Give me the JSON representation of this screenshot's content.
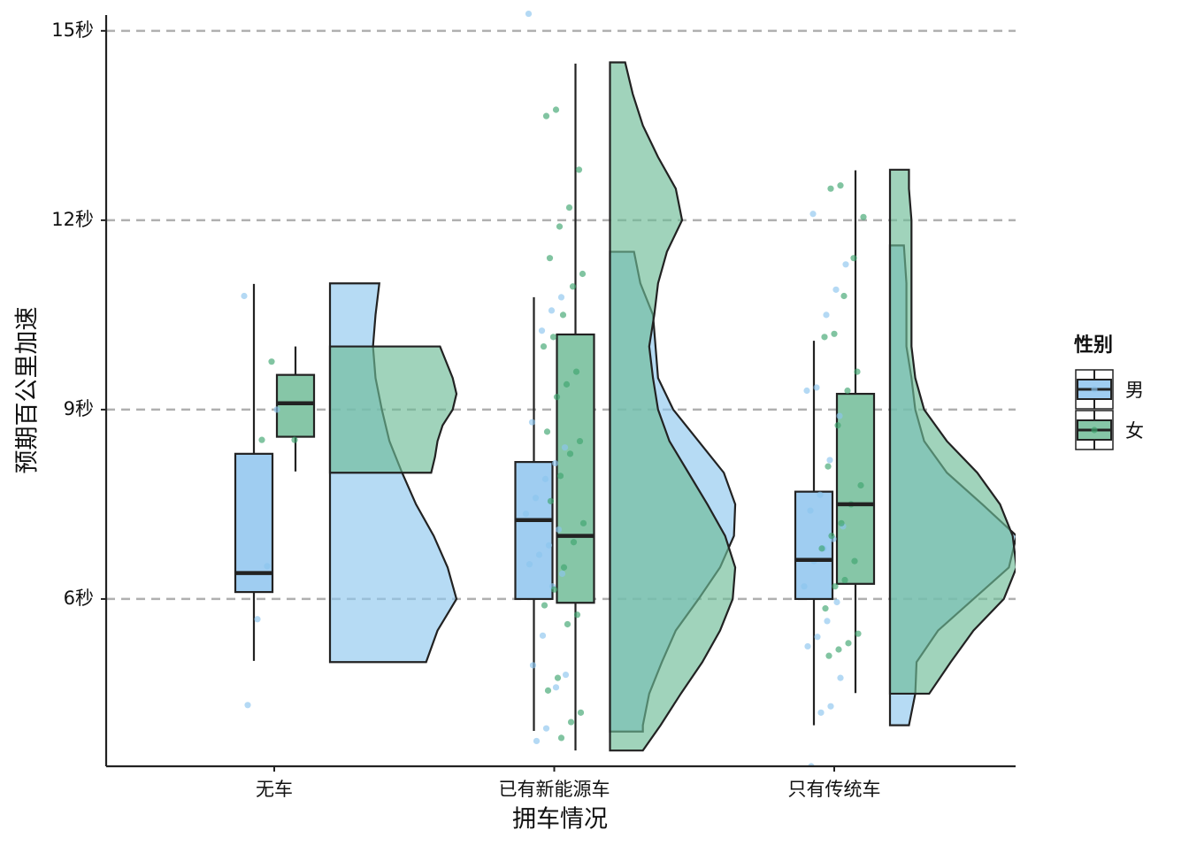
{
  "chart_data": {
    "type": "raincloud",
    "x_label": "拥车情况",
    "y_label": "预期百公里加速",
    "categories": [
      "无车",
      "已有新能源车",
      "只有传统车"
    ],
    "ylim": [
      3.35,
      15.25
    ],
    "yticks": [
      {
        "value": 6,
        "label": "6秒"
      },
      {
        "value": 9,
        "label": "9秒"
      },
      {
        "value": 12,
        "label": "12秒"
      },
      {
        "value": 15,
        "label": "15秒"
      }
    ],
    "grid": true,
    "legend_title": "性别",
    "legend_position": "right",
    "series": [
      {
        "name": "男",
        "color": "#9fcdf1",
        "violin_color": "#8fc7ee",
        "point_color": "#8cc4ee",
        "whisker_low": [
          5.02,
          3.91,
          4.0
        ],
        "q1": [
          6.11,
          6.0,
          6.0
        ],
        "median": [
          6.41,
          7.25,
          6.62
        ],
        "q3": [
          8.3,
          8.17,
          7.7
        ],
        "whisker_high": [
          10.99,
          10.78,
          10.09
        ],
        "points": [
          [
            10.8,
            9.0,
            6.52,
            5.68,
            4.32
          ],
          [
            15.27,
            10.78,
            10.57,
            10.25,
            8.8,
            8.4,
            8.15,
            7.9,
            7.6,
            7.35,
            7.1,
            6.85,
            6.7,
            6.55,
            6.4,
            6.2,
            5.42,
            4.95,
            4.8,
            4.6,
            3.95,
            3.75
          ],
          [
            12.1,
            11.3,
            10.9,
            10.5,
            9.35,
            9.3,
            8.9,
            8.2,
            7.65,
            7.4,
            7.15,
            6.95,
            6.8,
            6.6,
            6.2,
            5.95,
            5.65,
            5.4,
            5.25,
            4.75,
            4.3,
            4.2,
            3.35
          ]
        ],
        "violin": [
          {
            "y": [
              5.0,
              5.5,
              6.0,
              6.5,
              7.0,
              7.5,
              8.0,
              8.5,
              9.0,
              9.5,
              10.0,
              10.5,
              11.0
            ],
            "density": [
              0.76,
              0.85,
              1.0,
              0.93,
              0.82,
              0.68,
              0.57,
              0.47,
              0.41,
              0.36,
              0.34,
              0.36,
              0.39
            ]
          },
          {
            "y": [
              3.9,
              4.0,
              4.5,
              5.0,
              5.5,
              6.0,
              6.5,
              7.0,
              7.5,
              8.0,
              8.5,
              9.0,
              9.5,
              10.0,
              10.5,
              11.0,
              11.5
            ],
            "density": [
              0.26,
              0.26,
              0.31,
              0.41,
              0.52,
              0.7,
              0.87,
              0.98,
              0.99,
              0.9,
              0.7,
              0.5,
              0.38,
              0.36,
              0.34,
              0.24,
              0.19
            ]
          },
          {
            "y": [
              4.0,
              4.5,
              5.0,
              5.5,
              6.0,
              6.5,
              7.0,
              7.5,
              8.0,
              8.5,
              9.0,
              9.5,
              10.0,
              10.5,
              11.0,
              11.6
            ],
            "density": [
              0.15,
              0.2,
              0.21,
              0.38,
              0.66,
              0.94,
              1.0,
              0.73,
              0.45,
              0.27,
              0.2,
              0.17,
              0.13,
              0.13,
              0.13,
              0.11
            ]
          }
        ]
      },
      {
        "name": "女",
        "color": "#86c6a7",
        "violin_color": "#6dbb96",
        "point_color": "#3da56f",
        "whisker_low": [
          8.02,
          3.6,
          4.51
        ],
        "q1": [
          8.57,
          5.94,
          6.24
        ],
        "median": [
          9.1,
          7.0,
          7.5
        ],
        "q3": [
          9.55,
          10.19,
          9.25
        ],
        "whisker_high": [
          10.0,
          14.48,
          12.79
        ],
        "points": [
          [
            9.76,
            8.52,
            8.52
          ],
          [
            13.75,
            13.65,
            12.8,
            12.2,
            11.9,
            11.4,
            11.15,
            10.95,
            10.5,
            10.15,
            10.0,
            9.6,
            9.4,
            9.2,
            8.65,
            8.5,
            8.3,
            7.95,
            7.55,
            7.2,
            6.9,
            6.5,
            6.15,
            5.9,
            5.75,
            5.6,
            4.75,
            4.55,
            4.2,
            4.05,
            3.8
          ],
          [
            12.55,
            12.5,
            12.05,
            11.4,
            10.8,
            10.2,
            10.15,
            9.6,
            9.3,
            8.75,
            8.1,
            7.8,
            7.5,
            7.2,
            7.0,
            6.8,
            6.6,
            6.3,
            6.2,
            5.85,
            5.45,
            5.3,
            5.2,
            5.1
          ]
        ],
        "violin": [
          {
            "y": [
              8.0,
              8.25,
              8.5,
              8.75,
              9.0,
              9.25,
              9.5,
              9.75,
              10.0
            ],
            "density": [
              0.8,
              0.83,
              0.85,
              0.89,
              0.97,
              1.0,
              0.97,
              0.92,
              0.87
            ]
          },
          {
            "y": [
              3.6,
              4.0,
              4.5,
              5.0,
              5.5,
              6.0,
              6.5,
              7.0,
              7.5,
              8.0,
              8.5,
              9.0,
              9.5,
              10.0,
              10.5,
              11.0,
              11.5,
              12.0,
              12.5,
              13.0,
              13.5,
              14.0,
              14.5
            ],
            "density": [
              0.26,
              0.4,
              0.56,
              0.73,
              0.87,
              0.97,
              0.99,
              0.91,
              0.77,
              0.62,
              0.47,
              0.38,
              0.34,
              0.31,
              0.35,
              0.38,
              0.45,
              0.57,
              0.52,
              0.38,
              0.26,
              0.18,
              0.12
            ]
          },
          {
            "y": [
              4.5,
              5.0,
              5.5,
              6.0,
              6.5,
              7.0,
              7.5,
              8.0,
              8.5,
              9.0,
              9.5,
              10.0,
              10.5,
              11.0,
              11.5,
              12.0,
              12.5,
              12.8
            ],
            "density": [
              0.31,
              0.48,
              0.66,
              0.9,
              1.0,
              0.97,
              0.87,
              0.69,
              0.45,
              0.27,
              0.2,
              0.17,
              0.17,
              0.17,
              0.17,
              0.17,
              0.15,
              0.15
            ]
          }
        ]
      }
    ]
  }
}
